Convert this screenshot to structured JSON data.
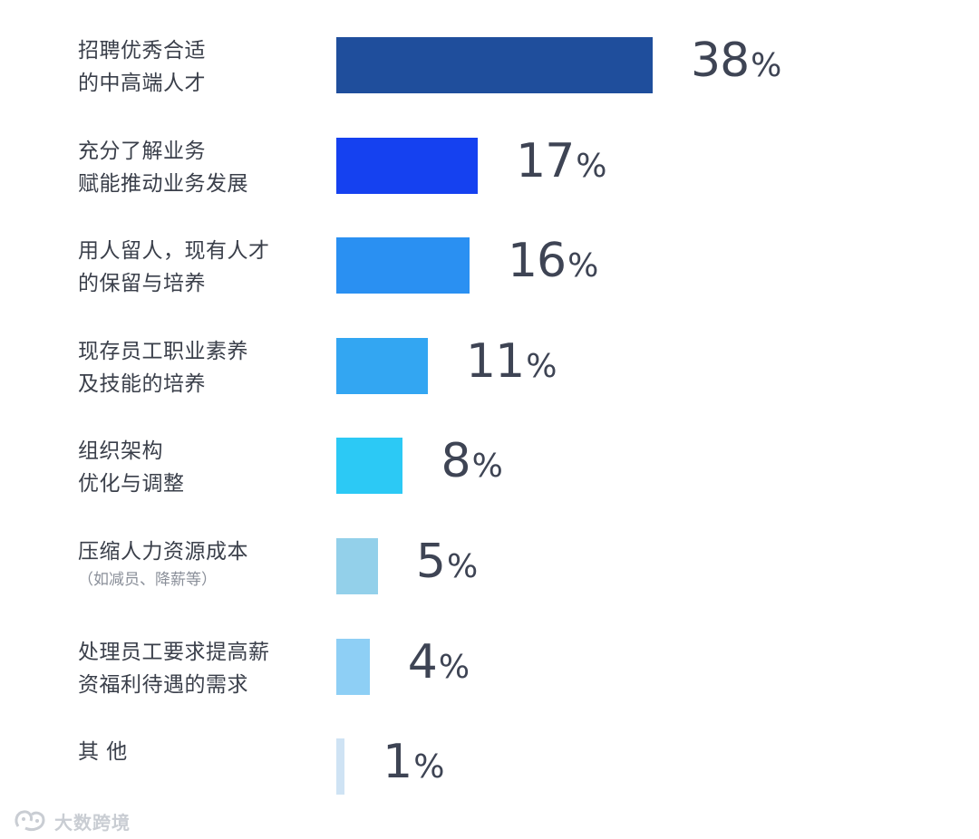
{
  "chart_data": {
    "type": "bar",
    "orientation": "horizontal",
    "categories": [
      {
        "lines": [
          "招聘优秀合适",
          "的中高端人才"
        ],
        "note": ""
      },
      {
        "lines": [
          "充分了解业务",
          "赋能推动业务发展"
        ],
        "note": ""
      },
      {
        "lines": [
          "用人留人，现有人才",
          "的保留与培养"
        ],
        "note": ""
      },
      {
        "lines": [
          "现存员工职业素养",
          "及技能的培养"
        ],
        "note": ""
      },
      {
        "lines": [
          "组织架构",
          "优化与调整"
        ],
        "note": ""
      },
      {
        "lines": [
          "压缩人力资源成本"
        ],
        "note": "（如减员、降薪等）"
      },
      {
        "lines": [
          "处理员工要求提高薪",
          "资福利待遇的需求"
        ],
        "note": ""
      },
      {
        "lines": [
          "其 他"
        ],
        "note": ""
      }
    ],
    "values": [
      38,
      17,
      16,
      11,
      8,
      5,
      4,
      1
    ],
    "value_labels": [
      "38",
      "17",
      "16",
      "11",
      "8",
      "5",
      "4",
      "1"
    ],
    "unit": "%",
    "bar_colors": [
      "#1f4e9c",
      "#1541f0",
      "#2a90f2",
      "#33a6f2",
      "#2cc9f5",
      "#93d0ea",
      "#8ecff5",
      "#cfe3f4"
    ],
    "title": "",
    "xlabel": "",
    "ylabel": "",
    "xlim": [
      0,
      38
    ],
    "grid": false,
    "legend": "none"
  },
  "watermark": {
    "text": "大数跨境",
    "icon": "wechat-channel-logo-icon"
  }
}
